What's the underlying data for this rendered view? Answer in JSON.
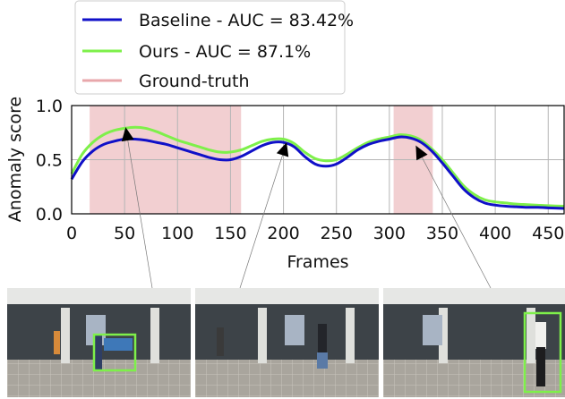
{
  "chart_data": {
    "type": "line",
    "xlabel": "Frames",
    "ylabel": "Anomaly score",
    "xlim": [
      0,
      465
    ],
    "ylim": [
      0,
      1
    ],
    "xticks": [
      0,
      50,
      100,
      150,
      200,
      250,
      300,
      350,
      400,
      450
    ],
    "yticks": [
      "0.0",
      "0.5",
      "1.0"
    ],
    "grid": true,
    "legend_placement": "top",
    "ground_truth_label": "Ground-truth",
    "ground_truth_color": "#e8a7ab",
    "ground_truth_intervals": [
      [
        17,
        160
      ],
      [
        304,
        341
      ]
    ],
    "series": [
      {
        "name": "Baseline - AUC = 83.42%",
        "color": "#1010c8",
        "x": [
          0,
          10,
          20,
          30,
          40,
          50,
          60,
          70,
          80,
          90,
          100,
          110,
          120,
          130,
          140,
          150,
          160,
          170,
          180,
          190,
          200,
          210,
          220,
          230,
          240,
          250,
          260,
          270,
          280,
          290,
          300,
          310,
          320,
          330,
          340,
          350,
          360,
          370,
          380,
          390,
          400,
          410,
          420,
          430,
          440,
          450,
          465
        ],
        "y": [
          0.32,
          0.48,
          0.58,
          0.64,
          0.67,
          0.69,
          0.69,
          0.68,
          0.66,
          0.64,
          0.61,
          0.58,
          0.55,
          0.52,
          0.5,
          0.5,
          0.53,
          0.58,
          0.63,
          0.66,
          0.66,
          0.62,
          0.53,
          0.46,
          0.44,
          0.46,
          0.52,
          0.59,
          0.64,
          0.67,
          0.69,
          0.71,
          0.7,
          0.66,
          0.58,
          0.47,
          0.35,
          0.23,
          0.15,
          0.1,
          0.08,
          0.07,
          0.065,
          0.06,
          0.06,
          0.055,
          0.05
        ]
      },
      {
        "name": "Ours - AUC = 87.1%",
        "color": "#7ef04a",
        "x": [
          0,
          10,
          20,
          30,
          40,
          50,
          60,
          70,
          80,
          90,
          100,
          110,
          120,
          130,
          140,
          150,
          160,
          170,
          180,
          190,
          200,
          210,
          220,
          230,
          240,
          250,
          260,
          270,
          280,
          290,
          300,
          310,
          320,
          330,
          340,
          350,
          360,
          370,
          380,
          390,
          400,
          410,
          420,
          430,
          440,
          450,
          465
        ],
        "y": [
          0.37,
          0.55,
          0.66,
          0.73,
          0.77,
          0.79,
          0.8,
          0.79,
          0.76,
          0.72,
          0.68,
          0.65,
          0.62,
          0.59,
          0.57,
          0.57,
          0.59,
          0.63,
          0.67,
          0.69,
          0.69,
          0.65,
          0.57,
          0.51,
          0.49,
          0.5,
          0.55,
          0.61,
          0.66,
          0.69,
          0.71,
          0.73,
          0.72,
          0.68,
          0.6,
          0.5,
          0.38,
          0.26,
          0.18,
          0.13,
          0.11,
          0.1,
          0.09,
          0.085,
          0.08,
          0.075,
          0.07
        ]
      }
    ],
    "pointers": [
      {
        "x": 51,
        "y": 0.8
      },
      {
        "x": 203,
        "y": 0.66
      },
      {
        "x": 325,
        "y": 0.63
      }
    ]
  }
}
